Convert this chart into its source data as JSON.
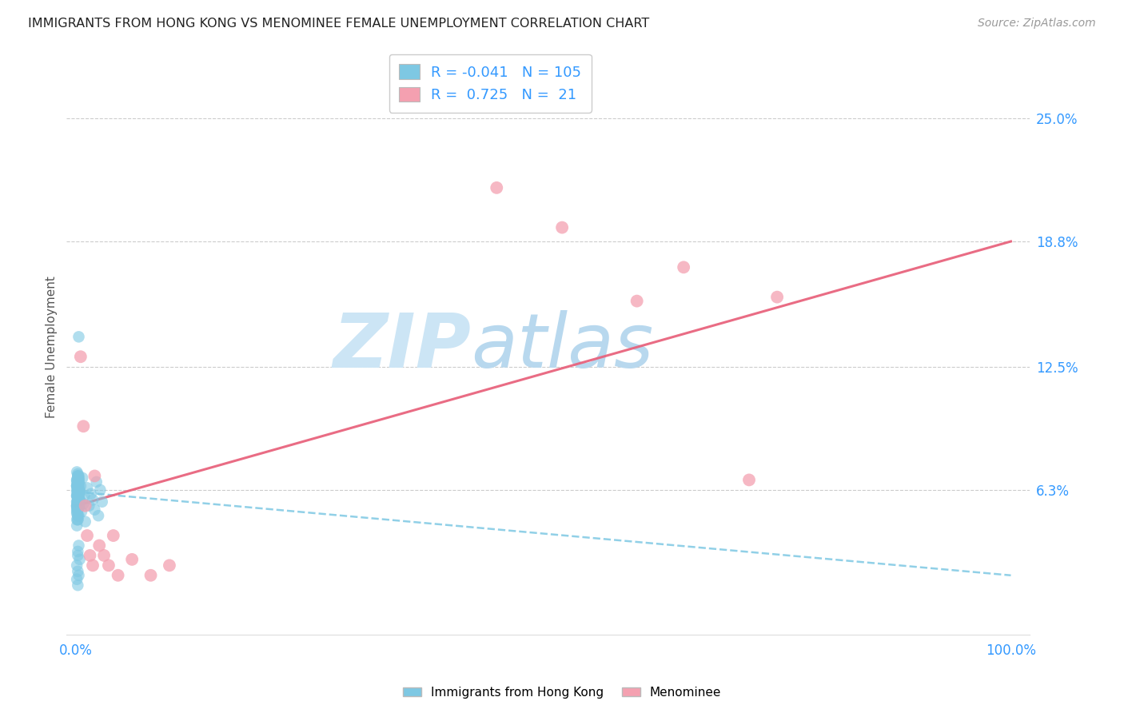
{
  "title": "IMMIGRANTS FROM HONG KONG VS MENOMINEE FEMALE UNEMPLOYMENT CORRELATION CHART",
  "source": "Source: ZipAtlas.com",
  "xlabel_blue": "Immigrants from Hong Kong",
  "xlabel_pink": "Menominee",
  "ylabel": "Female Unemployment",
  "x_tick_labels": [
    "0.0%",
    "100.0%"
  ],
  "x_tick_positions": [
    0.0,
    1.0
  ],
  "y_tick_labels": [
    "25.0%",
    "18.8%",
    "12.5%",
    "6.3%"
  ],
  "y_tick_values": [
    0.25,
    0.188,
    0.125,
    0.063
  ],
  "blue_R": -0.041,
  "blue_N": 105,
  "pink_R": 0.725,
  "pink_N": 21,
  "blue_color": "#7ec8e3",
  "pink_color": "#f4a0b0",
  "blue_line_color": "#7ec8e3",
  "pink_line_color": "#e8607a",
  "background_color": "#ffffff",
  "watermark_zip_color": "#cce5f5",
  "watermark_atlas_color": "#b8d8ee",
  "blue_scatter_x": [
    0.003,
    0.001,
    0.002,
    0.001,
    0.002,
    0.003,
    0.002,
    0.001,
    0.004,
    0.002,
    0.001,
    0.003,
    0.002,
    0.001,
    0.002,
    0.003,
    0.001,
    0.002,
    0.003,
    0.004,
    0.002,
    0.001,
    0.002,
    0.003,
    0.001,
    0.002,
    0.003,
    0.001,
    0.002,
    0.001,
    0.002,
    0.003,
    0.001,
    0.002,
    0.003,
    0.004,
    0.002,
    0.001,
    0.002,
    0.003,
    0.001,
    0.002,
    0.003,
    0.001,
    0.002,
    0.001,
    0.002,
    0.003,
    0.001,
    0.002,
    0.003,
    0.004,
    0.002,
    0.001,
    0.002,
    0.003,
    0.001,
    0.002,
    0.003,
    0.001,
    0.002,
    0.001,
    0.002,
    0.003,
    0.001,
    0.002,
    0.003,
    0.004,
    0.002,
    0.001,
    0.002,
    0.003,
    0.001,
    0.002,
    0.003,
    0.001,
    0.002,
    0.001,
    0.002,
    0.003,
    0.004,
    0.005,
    0.006,
    0.007,
    0.008,
    0.009,
    0.01,
    0.012,
    0.014,
    0.016,
    0.018,
    0.02,
    0.022,
    0.024,
    0.026,
    0.028,
    0.003,
    0.002,
    0.001,
    0.002,
    0.003,
    0.004,
    0.002,
    0.001,
    0.002
  ],
  "blue_scatter_y": [
    0.14,
    0.065,
    0.055,
    0.06,
    0.058,
    0.07,
    0.05,
    0.065,
    0.062,
    0.048,
    0.072,
    0.058,
    0.063,
    0.055,
    0.06,
    0.068,
    0.045,
    0.07,
    0.055,
    0.062,
    0.058,
    0.067,
    0.053,
    0.06,
    0.065,
    0.058,
    0.05,
    0.068,
    0.055,
    0.06,
    0.064,
    0.057,
    0.052,
    0.066,
    0.059,
    0.061,
    0.056,
    0.063,
    0.054,
    0.069,
    0.055,
    0.06,
    0.058,
    0.065,
    0.053,
    0.068,
    0.057,
    0.062,
    0.048,
    0.071,
    0.056,
    0.063,
    0.059,
    0.055,
    0.061,
    0.067,
    0.054,
    0.058,
    0.065,
    0.051,
    0.069,
    0.057,
    0.063,
    0.055,
    0.06,
    0.05,
    0.066,
    0.058,
    0.064,
    0.053,
    0.07,
    0.057,
    0.062,
    0.048,
    0.068,
    0.055,
    0.061,
    0.057,
    0.063,
    0.054,
    0.058,
    0.065,
    0.052,
    0.069,
    0.056,
    0.06,
    0.047,
    0.064,
    0.055,
    0.061,
    0.058,
    0.053,
    0.067,
    0.05,
    0.063,
    0.057,
    0.02,
    0.015,
    0.025,
    0.03,
    0.035,
    0.028,
    0.022,
    0.018,
    0.032
  ],
  "pink_scatter_x": [
    0.005,
    0.008,
    0.01,
    0.012,
    0.015,
    0.018,
    0.02,
    0.025,
    0.03,
    0.035,
    0.04,
    0.045,
    0.06,
    0.08,
    0.1,
    0.45,
    0.52,
    0.6,
    0.65,
    0.72,
    0.75
  ],
  "pink_scatter_y": [
    0.13,
    0.095,
    0.055,
    0.04,
    0.03,
    0.025,
    0.07,
    0.035,
    0.03,
    0.025,
    0.04,
    0.02,
    0.028,
    0.02,
    0.025,
    0.215,
    0.195,
    0.158,
    0.175,
    0.068,
    0.16
  ],
  "xlim": [
    -0.01,
    1.02
  ],
  "ylim": [
    -0.01,
    0.28
  ],
  "blue_line_x": [
    0.0,
    1.0
  ],
  "blue_line_y_start": 0.062,
  "blue_line_y_end": 0.02,
  "pink_line_x": [
    0.0,
    1.0
  ],
  "pink_line_y_start": 0.055,
  "pink_line_y_end": 0.188
}
